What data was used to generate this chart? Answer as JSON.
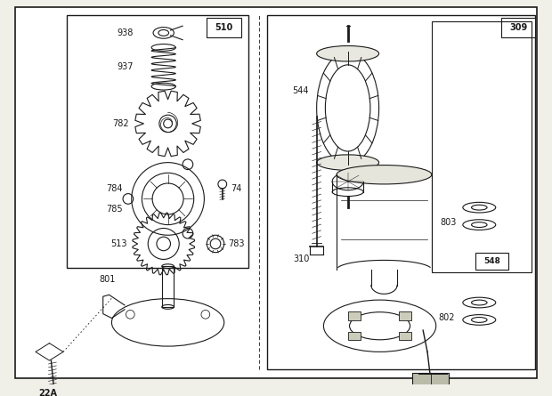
{
  "background_color": "#f0efe8",
  "line_color": "#1a1a1a",
  "text_color": "#1a1a1a",
  "figsize": [
    6.2,
    4.45
  ],
  "dpi": 100
}
